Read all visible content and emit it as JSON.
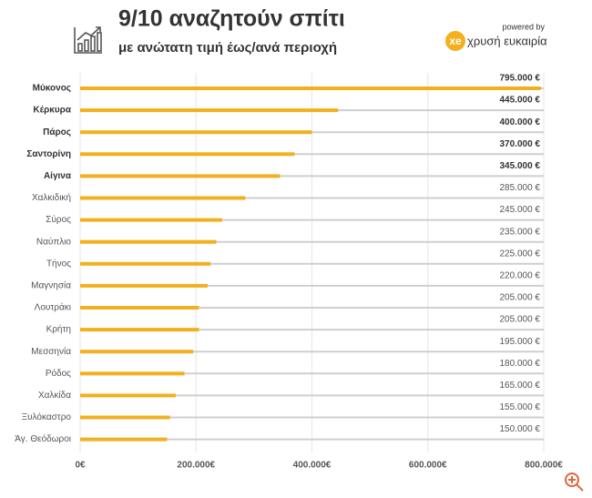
{
  "chart_data": {
    "type": "bar",
    "orientation": "horizontal",
    "title": "9/10 αναζητούν σπίτι",
    "subtitle": "με ανώτατη τιμή έως/ανά περιοχή",
    "powered_by": "powered by",
    "brand_mark": "xe",
    "brand_name": "χρυσή ευκαιρία",
    "categories": [
      "Μύκονος",
      "Κέρκυρα",
      "Πάρος",
      "Σαντορίνη",
      "Αίγινα",
      "Χαλκιδική",
      "Σύρος",
      "Ναύπλιο",
      "Τήνος",
      "Μαγνησία",
      "Λουτράκι",
      "Κρήτη",
      "Μεσσηνία",
      "Ρόδος",
      "Χαλκίδα",
      "Ξυλόκαστρο",
      "Άγ. Θεόδωροι"
    ],
    "values": [
      795000,
      445000,
      400000,
      370000,
      345000,
      285000,
      245000,
      235000,
      225000,
      220000,
      205000,
      205000,
      195000,
      180000,
      165000,
      155000,
      150000
    ],
    "value_labels": [
      "795.000 €",
      "445.000 €",
      "400.000 €",
      "370.000 €",
      "345.000 €",
      "285.000 €",
      "245.000 €",
      "235.000 €",
      "225.000 €",
      "220.000 €",
      "205.000 €",
      "205.000 €",
      "195.000 €",
      "180.000 €",
      "165.000 €",
      "155.000 €",
      "150.000 €"
    ],
    "bold": [
      true,
      true,
      true,
      true,
      true,
      false,
      false,
      false,
      false,
      false,
      false,
      false,
      false,
      false,
      false,
      false,
      false
    ],
    "color": "#f2b01e",
    "track_color": "#cfcfcf",
    "xlim": [
      0,
      800000
    ],
    "xticks": [
      {
        "value": 0,
        "label": "0€"
      },
      {
        "value": 200000,
        "label": "200.000€"
      },
      {
        "value": 400000,
        "label": "400.000€"
      },
      {
        "value": 600000,
        "label": "600.000€"
      },
      {
        "value": 800000,
        "label": "800.000€"
      }
    ],
    "grid": true
  }
}
